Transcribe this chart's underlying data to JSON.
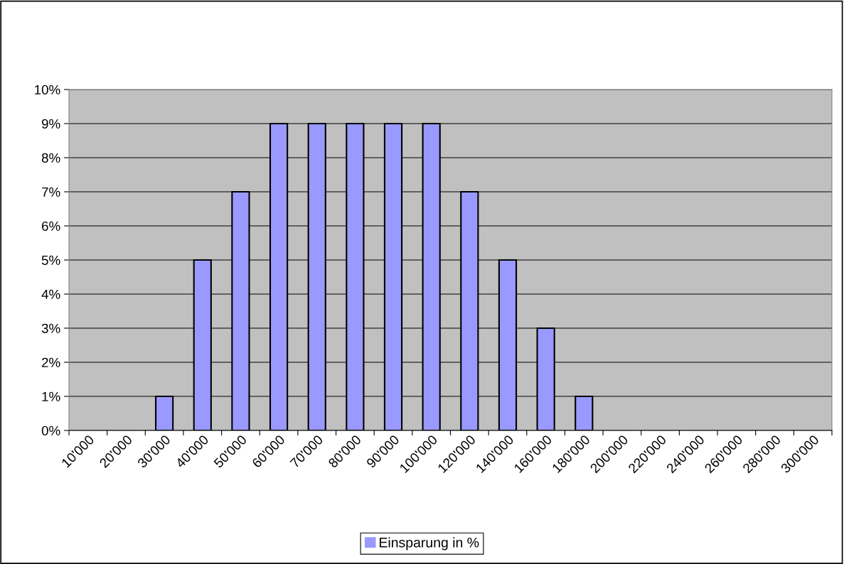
{
  "chart_data": {
    "type": "bar",
    "categories": [
      "10'000",
      "20'000",
      "30'000",
      "40'000",
      "50'000",
      "60'000",
      "70'000",
      "80'000",
      "90'000",
      "100'000",
      "120'000",
      "140'000",
      "160'000",
      "180'000",
      "200'000",
      "220'000",
      "240'000",
      "260'000",
      "280'000",
      "300'000"
    ],
    "series": [
      {
        "name": "Einsparung in %",
        "color": "#9999ff",
        "values": [
          0,
          0,
          1,
          5,
          7,
          9,
          9,
          9,
          9,
          9,
          7,
          5,
          3,
          1,
          0,
          0,
          0,
          0,
          0,
          0
        ]
      }
    ],
    "ylim": [
      0,
      10
    ],
    "yticks": [
      {
        "value": 0,
        "label": "0%"
      },
      {
        "value": 1,
        "label": "1%"
      },
      {
        "value": 2,
        "label": "2%"
      },
      {
        "value": 3,
        "label": "3%"
      },
      {
        "value": 4,
        "label": "4%"
      },
      {
        "value": 5,
        "label": "5%"
      },
      {
        "value": 6,
        "label": "6%"
      },
      {
        "value": 7,
        "label": "7%"
      },
      {
        "value": 8,
        "label": "8%"
      },
      {
        "value": 9,
        "label": "9%"
      },
      {
        "value": 10,
        "label": "10%"
      }
    ],
    "grid": "y",
    "legend": "bottom"
  }
}
